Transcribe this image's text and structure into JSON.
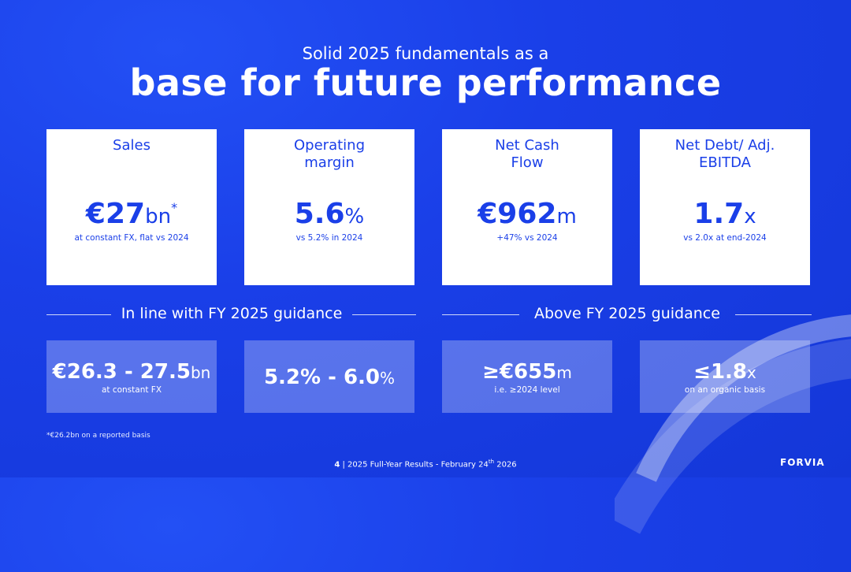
{
  "header": {
    "subtitle": "Solid 2025 fundamentals as a",
    "title": "base for future performance"
  },
  "cards": [
    {
      "label": "Sales",
      "value": "€27",
      "unit": "bn",
      "mark": "*",
      "note": "at constant FX, flat vs 2024"
    },
    {
      "label": "Operating margin",
      "value": "5.6",
      "unit": "%",
      "note": "vs 5.2% in 2024"
    },
    {
      "label": "Net Cash Flow",
      "value": "€962",
      "unit": "m",
      "note": "+47% vs 2024"
    },
    {
      "label": "Net Debt/ Adj. EBITDA",
      "value": "1.7",
      "unit": "x",
      "note": "vs 2.0x at end-2024"
    }
  ],
  "sections": {
    "left": "In line with FY 2025 guidance",
    "right": "Above FY 2025 guidance"
  },
  "guidance": [
    {
      "value": "€26.3 - 27.5",
      "unit": "bn",
      "note": "at constant FX"
    },
    {
      "value": "5.2% - 6.0",
      "unit": "%",
      "note": ""
    },
    {
      "value": "≥€655",
      "unit": "m",
      "note": "i.e. ≥2024 level"
    },
    {
      "value": "≤1.8",
      "unit": "x",
      "note": "on an organic basis"
    }
  ],
  "footnote": "*€26.2bn on a reported basis",
  "footer": {
    "page": "4",
    "separator": "|",
    "text": "2025 Full-Year Results - February 24",
    "superscript": "th",
    "year": "2026"
  },
  "logo": "FORVIA",
  "colors": {
    "brand_blue": "#1a3fe8",
    "white": "#ffffff"
  }
}
